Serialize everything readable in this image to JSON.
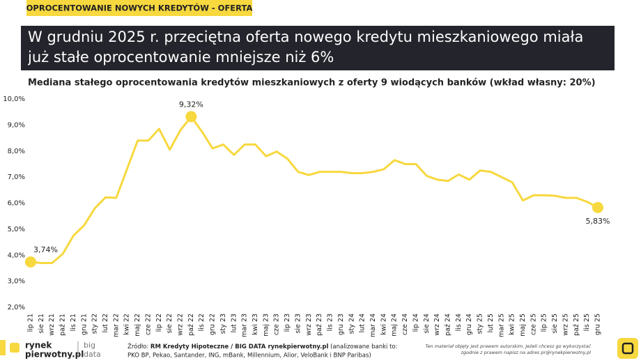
{
  "header": {
    "tag": "OPROCENTOWANIE NOWYCH KREDYTÓW - OFERTA",
    "title": "W grudniu 2025 r. przeciętna oferta nowego kredytu mieszkaniowego miała już stałe oprocentowanie mniejsze niż 6%"
  },
  "chart_data": {
    "type": "line",
    "title": "Mediana stałego oprocentowania kredytów mieszkaniowych z oferty 9 wiodących banków (wkład własny: 20%)",
    "categories": [
      "lip 21",
      "sie 21",
      "wrz 21",
      "paź 21",
      "lis 21",
      "gru 21",
      "sty 22",
      "lut 22",
      "mar 22",
      "kwi 22",
      "maj 22",
      "cze 22",
      "lip 22",
      "sie 22",
      "wrz 22",
      "paź 22",
      "lis 22",
      "gru 22",
      "sty 23",
      "lut 23",
      "mar 23",
      "kwi 23",
      "maj 23",
      "cze 23",
      "lip 23",
      "sie 23",
      "wrz 23",
      "paź 23",
      "lis 23",
      "gru 23",
      "sty 24",
      "lut 24",
      "mar 24",
      "kwi 24",
      "maj 24",
      "cze 24",
      "lip 24",
      "sie 24",
      "wrz 24",
      "paź 24",
      "lis 24",
      "gru 24",
      "sty 25",
      "lut 25",
      "mar 25",
      "kwi 25",
      "maj 25",
      "cze 25",
      "lip 25",
      "sie 25",
      "wrz 25",
      "paź 25",
      "lis 25",
      "gru 25"
    ],
    "values": [
      3.74,
      3.7,
      3.7,
      4.05,
      4.75,
      5.15,
      5.8,
      6.22,
      6.2,
      7.3,
      8.4,
      8.4,
      8.85,
      8.05,
      8.8,
      9.32,
      8.75,
      8.1,
      8.25,
      7.85,
      8.25,
      8.25,
      7.8,
      7.98,
      7.7,
      7.2,
      7.08,
      7.2,
      7.2,
      7.2,
      7.15,
      7.15,
      7.2,
      7.3,
      7.65,
      7.5,
      7.5,
      7.05,
      6.9,
      6.85,
      7.1,
      6.9,
      7.25,
      7.2,
      7.0,
      6.8,
      6.1,
      6.3,
      6.3,
      6.28,
      6.2,
      6.2,
      6.05,
      5.83
    ],
    "value_labels": [
      "3,74%",
      null,
      null,
      null,
      null,
      null,
      null,
      null,
      null,
      null,
      null,
      null,
      null,
      null,
      null,
      "9,32%",
      null,
      null,
      null,
      null,
      null,
      null,
      null,
      null,
      null,
      null,
      null,
      null,
      null,
      null,
      null,
      null,
      null,
      null,
      null,
      null,
      null,
      null,
      null,
      null,
      null,
      null,
      null,
      null,
      null,
      null,
      null,
      null,
      null,
      null,
      null,
      null,
      null,
      "5,83%"
    ],
    "color": "#f7d83e",
    "ylim": [
      2,
      10
    ],
    "yticks": [
      {
        "value": 2,
        "label": "2,0%"
      },
      {
        "value": 3,
        "label": "3,0%"
      },
      {
        "value": 4,
        "label": "4,0%"
      },
      {
        "value": 5,
        "label": "5,0%"
      },
      {
        "value": 6,
        "label": "6,0%"
      },
      {
        "value": 7,
        "label": "7,0%"
      },
      {
        "value": 8,
        "label": "8,0%"
      },
      {
        "value": 9,
        "label": "9,0%"
      },
      {
        "value": 10,
        "label": "10,0%"
      }
    ],
    "grid": false
  },
  "footer": {
    "logo": [
      "rynek",
      "pierwotny.pl"
    ],
    "brand": [
      "big",
      "data"
    ],
    "source": [
      "Źródło: ",
      "RM Kredyty Hipoteczne / BIG DATA rynekpierwotny.pl",
      " (analizowane banki to:",
      "PKO BP, Pekao, Santander, ING, mBank, Millennium, Alior, VeloBank i BNP Paribas)"
    ],
    "copyright": [
      "Ten materiał objęty jest prawem autorskim. Jeżeli chcesz go wykorzystać",
      "zgodnie z prawem napisz na adres pr@rynekpierwotny.pl"
    ]
  }
}
